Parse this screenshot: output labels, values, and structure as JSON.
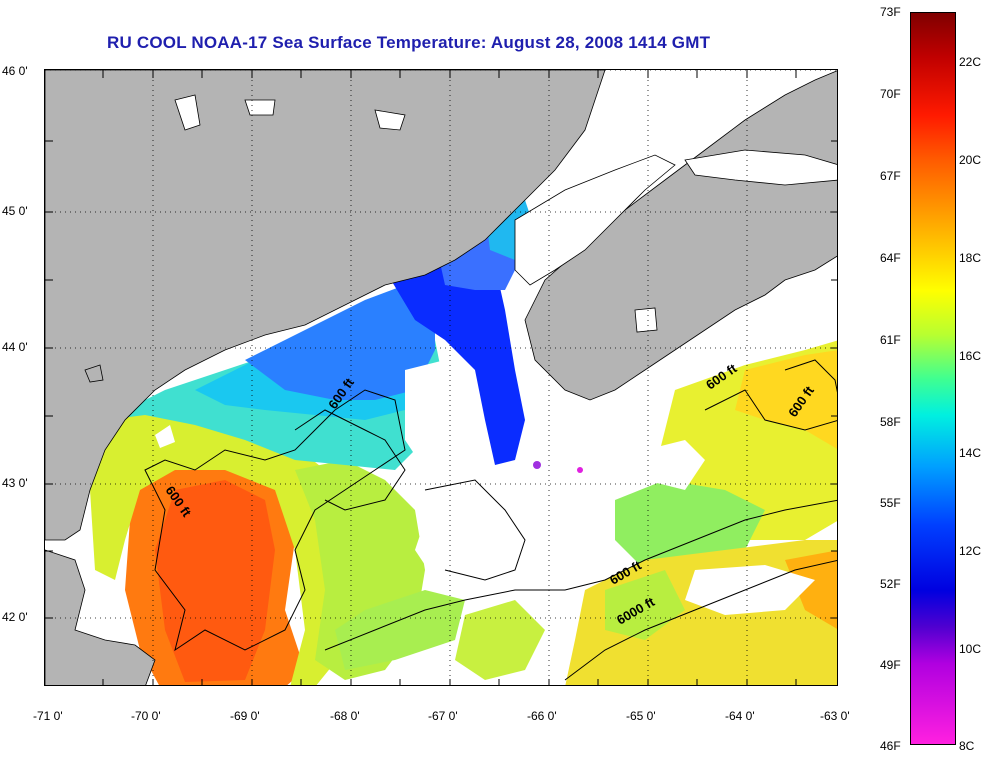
{
  "title": "RU COOL  NOAA-17  Sea Surface Temperature:  August 28, 2008 1414 GMT",
  "axes": {
    "lon_ticks": [
      "-71 0'",
      "-70 0'",
      "-69 0'",
      "-68 0'",
      "-67 0'",
      "-66 0'",
      "-65 0'",
      "-64 0'",
      "-63 0'"
    ],
    "lat_ticks": [
      "46 0'",
      "45 0'",
      "44 0'",
      "43 0'",
      "42 0'"
    ]
  },
  "colorbar": {
    "fahrenheit": [
      "73F",
      "70F",
      "67F",
      "64F",
      "61F",
      "58F",
      "55F",
      "52F",
      "49F",
      "46F"
    ],
    "celsius": [
      "22C",
      "20C",
      "18C",
      "16C",
      "14C",
      "12C",
      "10C",
      "8C"
    ]
  },
  "contour_labels": [
    "600 ft",
    "600 ft",
    "600 ft",
    "600 ft",
    "600 ft",
    "6000 ft"
  ],
  "colors": {
    "land": "#b4b4b4",
    "no_data": "#ffffff",
    "title": "#1f1fae",
    "warm": "#ff6a00",
    "cold": "#0a2cff"
  }
}
